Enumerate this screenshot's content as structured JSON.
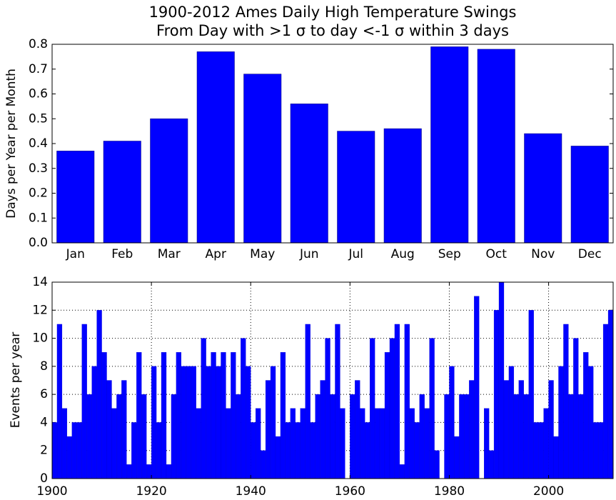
{
  "chart_data": [
    {
      "type": "bar",
      "title": "1900-2012 Ames Daily High Temperature Swings",
      "subtitle": "From Day with >1 σ to day <-1 σ within 3 days",
      "ylabel": "Days per Year per Month",
      "categories": [
        "Jan",
        "Feb",
        "Mar",
        "Apr",
        "May",
        "Jun",
        "Jul",
        "Aug",
        "Sep",
        "Oct",
        "Nov",
        "Dec"
      ],
      "values": [
        0.37,
        0.41,
        0.5,
        0.77,
        0.68,
        0.56,
        0.45,
        0.46,
        0.79,
        0.78,
        0.44,
        0.39
      ],
      "color": "#0000ff",
      "ylim": [
        0,
        0.8
      ],
      "yticks": [
        {
          "value": 0,
          "label": "0.0"
        },
        {
          "value": 0.1,
          "label": "0.1"
        },
        {
          "value": 0.2,
          "label": "0.2"
        },
        {
          "value": 0.3,
          "label": "0.3"
        },
        {
          "value": 0.4,
          "label": "0.4"
        },
        {
          "value": 0.5,
          "label": "0.5"
        },
        {
          "value": 0.6,
          "label": "0.6"
        },
        {
          "value": 0.7,
          "label": "0.7"
        },
        {
          "value": 0.8,
          "label": "0.8"
        }
      ],
      "grid": false
    },
    {
      "type": "yearbar",
      "ylabel": "Events per year",
      "x": [
        1900,
        1901,
        1902,
        1903,
        1904,
        1905,
        1906,
        1907,
        1908,
        1909,
        1910,
        1911,
        1912,
        1913,
        1914,
        1915,
        1916,
        1917,
        1918,
        1919,
        1920,
        1921,
        1922,
        1923,
        1924,
        1925,
        1926,
        1927,
        1928,
        1929,
        1930,
        1931,
        1932,
        1933,
        1934,
        1935,
        1936,
        1937,
        1938,
        1939,
        1940,
        1941,
        1942,
        1943,
        1944,
        1945,
        1946,
        1947,
        1948,
        1949,
        1950,
        1951,
        1952,
        1953,
        1954,
        1955,
        1956,
        1957,
        1958,
        1959,
        1960,
        1961,
        1962,
        1963,
        1964,
        1965,
        1966,
        1967,
        1968,
        1969,
        1970,
        1971,
        1972,
        1973,
        1974,
        1975,
        1976,
        1977,
        1978,
        1979,
        1980,
        1981,
        1982,
        1983,
        1984,
        1985,
        1986,
        1987,
        1988,
        1989,
        1990,
        1991,
        1992,
        1993,
        1994,
        1995,
        1996,
        1997,
        1998,
        1999,
        2000,
        2001,
        2002,
        2003,
        2004,
        2005,
        2006,
        2007,
        2008,
        2009,
        2010,
        2011,
        2012
      ],
      "values": [
        4,
        11,
        5,
        3,
        4,
        4,
        11,
        6,
        8,
        12,
        9,
        7,
        5,
        6,
        7,
        1,
        4,
        9,
        6,
        1,
        8,
        4,
        9,
        1,
        6,
        9,
        8,
        8,
        8,
        5,
        10,
        8,
        9,
        8,
        9,
        5,
        9,
        6,
        10,
        8,
        4,
        5,
        2,
        7,
        8,
        3,
        9,
        4,
        5,
        4,
        5,
        11,
        4,
        6,
        7,
        10,
        6,
        11,
        5,
        0,
        6,
        7,
        5,
        4,
        10,
        5,
        5,
        9,
        10,
        11,
        1,
        11,
        5,
        4,
        6,
        5,
        10,
        2,
        0,
        6,
        8,
        3,
        6,
        6,
        7,
        13,
        0,
        5,
        2,
        12,
        14,
        7,
        8,
        6,
        7,
        6,
        12,
        4,
        4,
        5,
        7,
        3,
        8,
        11,
        6,
        10,
        6,
        9,
        8,
        4,
        4,
        11,
        12
      ],
      "color": "#0000ff",
      "xlim": [
        1900,
        2013
      ],
      "xticks": [
        1900,
        1920,
        1940,
        1960,
        1980,
        2000
      ],
      "ylim": [
        0,
        14
      ],
      "yticks": [
        0,
        2,
        4,
        6,
        8,
        10,
        12,
        14
      ],
      "grid": true
    }
  ]
}
